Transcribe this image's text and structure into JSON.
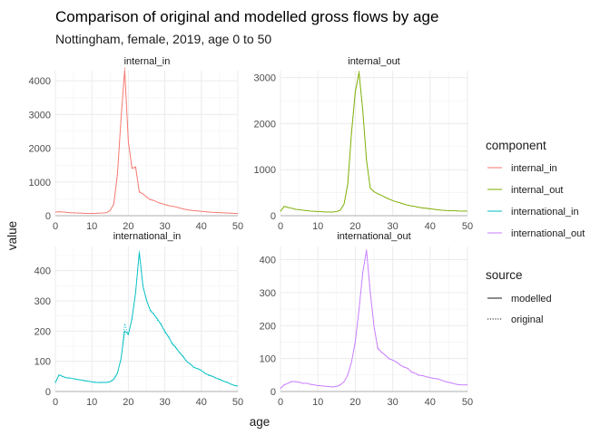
{
  "title": "Comparison of original and modelled gross flows by age",
  "subtitle": "Nottingham, female, 2019, age 0 to 50",
  "chart_data": {
    "type": "line",
    "facet_layout": "2x2 grid, free y scales",
    "grid": true,
    "xlabel": "age",
    "ylabel": "value",
    "xlim": [
      0,
      50
    ],
    "x_ticks": [
      0,
      10,
      20,
      30,
      40,
      50
    ],
    "x": [
      0,
      1,
      2,
      3,
      4,
      5,
      6,
      7,
      8,
      9,
      10,
      11,
      12,
      13,
      14,
      15,
      16,
      17,
      18,
      19,
      20,
      21,
      22,
      23,
      24,
      25,
      26,
      27,
      28,
      29,
      30,
      31,
      32,
      33,
      34,
      35,
      36,
      37,
      38,
      39,
      40,
      41,
      42,
      43,
      44,
      45,
      46,
      47,
      48,
      49,
      50
    ],
    "panels": [
      {
        "strip": "internal_in",
        "component": "internal_in",
        "color": "#F8766D",
        "ylim": [
          0,
          4300
        ],
        "y_ticks": [
          0,
          1000,
          2000,
          3000,
          4000
        ],
        "series": [
          {
            "source": "modelled",
            "values": [
              110,
              115,
              110,
              100,
              90,
              85,
              80,
              75,
              70,
              65,
              65,
              70,
              75,
              80,
              90,
              150,
              350,
              1200,
              2900,
              4300,
              2200,
              1400,
              1450,
              700,
              650,
              550,
              480,
              450,
              400,
              360,
              330,
              300,
              280,
              260,
              230,
              200,
              180,
              160,
              150,
              140,
              130,
              120,
              110,
              100,
              95,
              90,
              85,
              80,
              75,
              70,
              65
            ]
          },
          {
            "source": "original",
            "values": [
              100,
              120,
              105,
              105,
              85,
              90,
              75,
              80,
              68,
              66,
              62,
              72,
              74,
              82,
              88,
              160,
              330,
              1250,
              2850,
              4400,
              2150,
              1450,
              1400,
              720,
              640,
              560,
              470,
              455,
              395,
              365,
              325,
              305,
              275,
              265,
              225,
              205,
              175,
              165,
              148,
              142,
              128,
              122,
              108,
              102,
              93,
              92,
              84,
              82,
              73,
              71,
              63
            ]
          }
        ]
      },
      {
        "strip": "internal_out",
        "component": "internal_out",
        "color": "#7CAE00",
        "ylim": [
          0,
          3150
        ],
        "y_ticks": [
          0,
          1000,
          2000,
          3000
        ],
        "series": [
          {
            "source": "modelled",
            "values": [
              100,
              200,
              180,
              160,
              140,
              130,
              120,
              110,
              100,
              95,
              90,
              85,
              80,
              80,
              80,
              90,
              120,
              250,
              700,
              1800,
              2700,
              3100,
              2300,
              1200,
              600,
              520,
              480,
              440,
              400,
              360,
              330,
              300,
              280,
              250,
              230,
              210,
              200,
              180,
              170,
              160,
              150,
              140,
              130,
              120,
              115,
              110,
              110,
              105,
              100,
              100,
              100
            ]
          },
          {
            "source": "original",
            "values": [
              90,
              210,
              175,
              165,
              135,
              135,
              118,
              112,
              98,
              97,
              88,
              87,
              78,
              82,
              78,
              92,
              118,
              260,
              680,
              1850,
              2650,
              3150,
              2250,
              1230,
              590,
              530,
              470,
              445,
              395,
              365,
              325,
              305,
              275,
              255,
              225,
              215,
              195,
              185,
              165,
              162,
              148,
              142,
              128,
              122,
              112,
              112,
              108,
              107,
              98,
              102,
              98
            ]
          }
        ]
      },
      {
        "strip": "international_in",
        "component": "international_in",
        "color": "#00BFC4",
        "ylim": [
          0,
          480
        ],
        "y_ticks": [
          0,
          100,
          200,
          300,
          400
        ],
        "series": [
          {
            "source": "modelled",
            "values": [
              30,
              55,
              50,
              45,
              45,
              42,
              40,
              38,
              36,
              34,
              32,
              30,
              30,
              30,
              30,
              32,
              40,
              60,
              110,
              200,
              190,
              240,
              330,
              460,
              350,
              300,
              270,
              255,
              240,
              220,
              200,
              180,
              160,
              145,
              130,
              115,
              100,
              90,
              80,
              75,
              70,
              60,
              55,
              50,
              45,
              40,
              35,
              30,
              25,
              20,
              18
            ]
          },
          {
            "source": "original",
            "values": [
              28,
              56,
              49,
              46,
              44,
              43,
              39,
              39,
              35,
              35,
              31,
              31,
              29,
              31,
              29,
              33,
              42,
              62,
              105,
              225,
              185,
              245,
              325,
              465,
              345,
              305,
              265,
              258,
              235,
              225,
              195,
              185,
              155,
              148,
              128,
              118,
              98,
              92,
              78,
              77,
              68,
              62,
              53,
              52,
              43,
              42,
              33,
              32,
              24,
              21,
              17
            ]
          }
        ]
      },
      {
        "strip": "international_out",
        "component": "international_out",
        "color": "#C77CFF",
        "ylim": [
          0,
          440
        ],
        "y_ticks": [
          0,
          100,
          200,
          300,
          400
        ],
        "series": [
          {
            "source": "modelled",
            "values": [
              10,
              20,
              25,
              30,
              30,
              28,
              25,
              25,
              22,
              20,
              18,
              17,
              16,
              15,
              14,
              15,
              20,
              30,
              50,
              90,
              150,
              250,
              360,
              430,
              300,
              200,
              130,
              120,
              110,
              100,
              95,
              90,
              80,
              75,
              70,
              60,
              55,
              50,
              48,
              45,
              42,
              40,
              38,
              35,
              30,
              28,
              25,
              22,
              20,
              20,
              20
            ]
          },
          {
            "source": "original",
            "values": [
              8,
              22,
              24,
              32,
              29,
              29,
              24,
              26,
              21,
              21,
              17,
              18,
              15,
              16,
              13,
              16,
              21,
              29,
              52,
              88,
              155,
              245,
              365,
              425,
              305,
              195,
              135,
              118,
              112,
              98,
              97,
              88,
              82,
              73,
              72,
              58,
              57,
              48,
              49,
              44,
              43,
              39,
              39,
              34,
              31,
              27,
              26,
              21,
              21,
              19,
              21
            ]
          }
        ]
      }
    ],
    "legend": {
      "placement": "right",
      "component_title": "component",
      "components": [
        {
          "label": "internal_in",
          "color": "#F8766D"
        },
        {
          "label": "internal_out",
          "color": "#7CAE00"
        },
        {
          "label": "international_in",
          "color": "#00BFC4"
        },
        {
          "label": "international_out",
          "color": "#C77CFF"
        }
      ],
      "source_title": "source",
      "sources": [
        {
          "label": "modelled",
          "linetype": "solid"
        },
        {
          "label": "original",
          "linetype": "dotted"
        }
      ]
    }
  }
}
